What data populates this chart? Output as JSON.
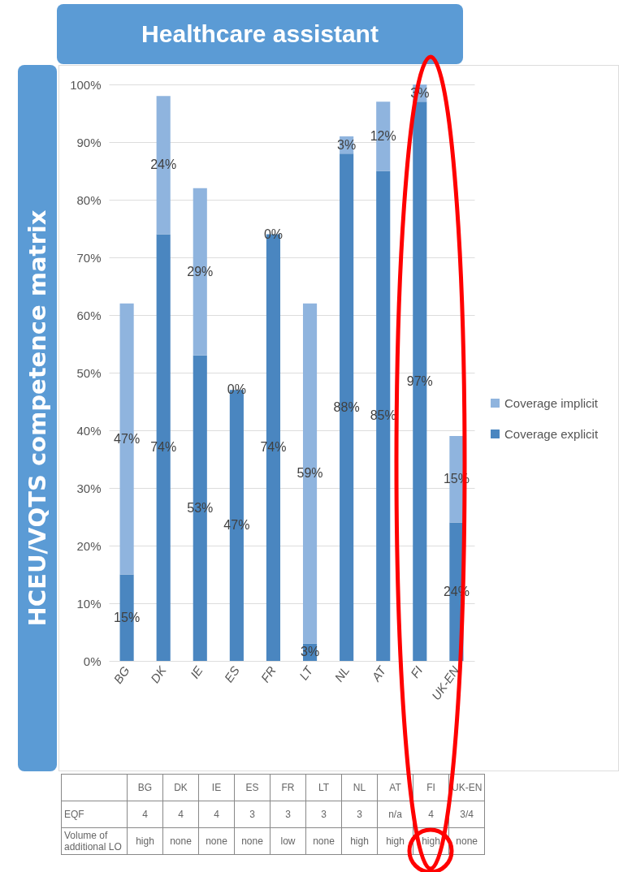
{
  "chart_data": {
    "type": "bar",
    "stacked": true,
    "title": "Healthcare assistant",
    "ylabel": "HCEU/VQTS competence matrix",
    "categories": [
      "BG",
      "DK",
      "IE",
      "ES",
      "FR",
      "LT",
      "NL",
      "AT",
      "FI",
      "UK-EN"
    ],
    "series": [
      {
        "name": "Coverage explicit",
        "color": "#4a86c0",
        "values": [
          15,
          74,
          53,
          47,
          74,
          3,
          88,
          85,
          97,
          24
        ],
        "value_labels": [
          "15%",
          "74%",
          "53%",
          "47%",
          "74%",
          "3%",
          "88%",
          "85%",
          "97%",
          "24%"
        ]
      },
      {
        "name": "Coverage implicit",
        "color": "#8fb4de",
        "values": [
          47,
          24,
          29,
          0,
          0,
          59,
          3,
          12,
          3,
          15
        ],
        "value_labels": [
          "47%",
          "24%",
          "29%",
          "0%",
          "0%",
          "59%",
          "3%",
          "12%",
          "3%",
          "15%"
        ]
      }
    ],
    "ylim": [
      0,
      100
    ],
    "yticks": [
      {
        "value": 0,
        "label": "0%"
      },
      {
        "value": 10,
        "label": "10%"
      },
      {
        "value": 20,
        "label": "20%"
      },
      {
        "value": 30,
        "label": "30%"
      },
      {
        "value": 40,
        "label": "40%"
      },
      {
        "value": 50,
        "label": "50%"
      },
      {
        "value": 60,
        "label": "60%"
      },
      {
        "value": 70,
        "label": "70%"
      },
      {
        "value": 80,
        "label": "80%"
      },
      {
        "value": 90,
        "label": "90%"
      },
      {
        "value": 100,
        "label": "100%"
      }
    ],
    "grid": "y",
    "legend": "right",
    "annotations": [
      "EQF",
      "4",
      "4",
      "4",
      "3",
      "3",
      "3",
      "3",
      "n/a",
      "4",
      "3/4",
      "Volume of additional LO",
      "high",
      "none",
      "none",
      "none",
      "low",
      "none",
      "high",
      "high",
      "high",
      "none"
    ]
  }
}
